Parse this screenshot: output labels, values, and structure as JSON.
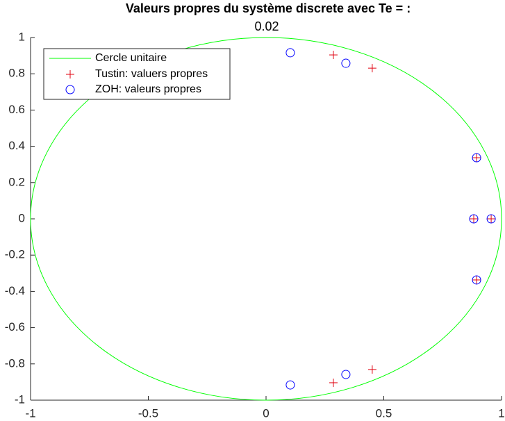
{
  "chart_data": {
    "type": "scatter",
    "title": "Valeurs propres du système discrete avec Te = :",
    "subtitle": "0.02",
    "xlim": [
      -1,
      1
    ],
    "ylim": [
      -1,
      1
    ],
    "xticks": [
      -1,
      -0.5,
      0,
      0.5,
      1
    ],
    "yticks": [
      -1,
      -0.8,
      -0.6,
      -0.4,
      -0.2,
      0,
      0.2,
      0.4,
      0.6,
      0.8,
      1
    ],
    "legend": "upper left",
    "circle": {
      "name": "Cercle unitaire",
      "color": "#00ff00",
      "center": [
        0,
        0
      ],
      "radius": 1
    },
    "series": [
      {
        "name": "Tustin: valuers propres",
        "color": "#e0000f",
        "marker": "plus",
        "x": [
          0.286,
          0.451,
          0.894,
          0.882,
          0.956,
          0.894,
          0.451,
          0.286
        ],
        "values": [
          0.904,
          0.831,
          0.337,
          0,
          0,
          -0.337,
          -0.831,
          -0.904
        ]
      },
      {
        "name": "ZOH: valeurs propres",
        "color": "#0000ff",
        "marker": "circle",
        "x": [
          0.103,
          0.339,
          0.894,
          0.882,
          0.956,
          0.894,
          0.339,
          0.103
        ],
        "values": [
          0.916,
          0.858,
          0.337,
          0,
          0,
          -0.337,
          -0.858,
          -0.916
        ]
      }
    ]
  }
}
